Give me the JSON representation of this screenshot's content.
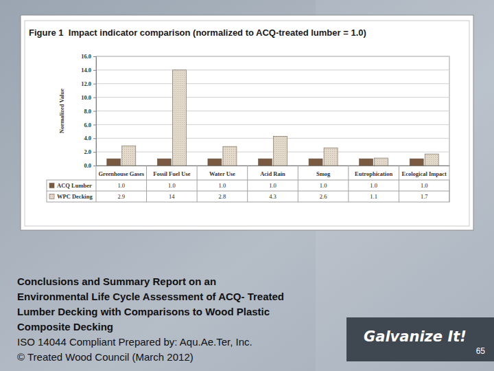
{
  "chart_data": {
    "type": "bar",
    "title": "Figure 1  Impact indicator comparison (normalized to ACQ-treated lumber = 1.0)",
    "y_label": "Normalized Value",
    "categories": [
      "Greenhouse Gases",
      "Fossil Fuel Use",
      "Water Use",
      "Acid Rain",
      "Smog",
      "Eutrophication",
      "Ecological Impact"
    ],
    "series": [
      {
        "name": "ACQ Lumber",
        "color": "#7a5a40",
        "values": [
          1.0,
          1.0,
          1.0,
          1.0,
          1.0,
          1.0,
          1.0
        ],
        "value_labels": [
          "1.0",
          "1.0",
          "1.0",
          "1.0",
          "1.0",
          "1.0",
          "1.0"
        ]
      },
      {
        "name": "WPC Decking",
        "color": "#e3d9cb",
        "values": [
          2.9,
          14,
          2.8,
          4.3,
          2.6,
          1.1,
          1.7
        ],
        "value_labels": [
          "2.9",
          "14",
          "2.8",
          "4.3",
          "2.6",
          "1.1",
          "1.7"
        ]
      }
    ],
    "ylim": [
      0,
      16
    ],
    "yticks": [
      {
        "value": 0,
        "label": "0.0"
      },
      {
        "value": 2,
        "label": "2.0"
      },
      {
        "value": 4,
        "label": "4.0"
      },
      {
        "value": 6,
        "label": "6.0"
      },
      {
        "value": 8,
        "label": "8.0"
      },
      {
        "value": 10,
        "label": "10.0"
      },
      {
        "value": 12,
        "label": "12.0"
      },
      {
        "value": 14,
        "label": "14.0"
      },
      {
        "value": 16,
        "label": "16.0"
      }
    ],
    "grid": true
  },
  "caption": {
    "title_lines": [
      "Conclusions and Summary Report on an",
      "Environmental Life Cycle Assessment of ACQ- Treated",
      "Lumber Decking with Comparisons to Wood Plastic",
      "Composite Decking"
    ],
    "lines": [
      "ISO 14044 Compliant Prepared by: Aqu.Ae.Ter, Inc.",
      "© Treated Wood Council (March 2012)"
    ]
  },
  "logo": "Galvanize It!",
  "page_number": "65"
}
